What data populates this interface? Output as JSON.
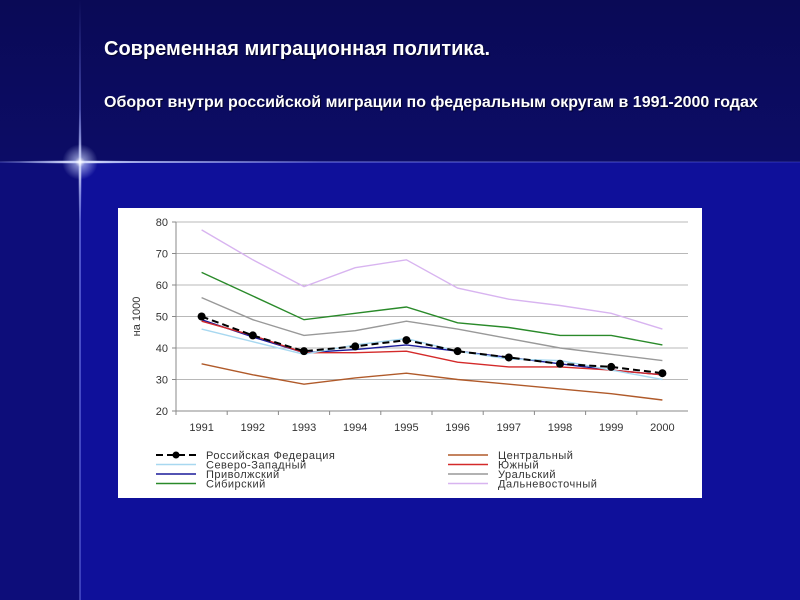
{
  "slide": {
    "title": "Современная миграционная политика.",
    "subtitle": "Оборот внутри российской миграции по федеральным округам в 1991-2000 годах"
  },
  "colors": {
    "background": "#0d0d7a",
    "title_text": "#ffffff",
    "chart_background": "#ffffff"
  },
  "chart_data": {
    "type": "line",
    "title": "",
    "xlabel": "",
    "ylabel": "на 1000",
    "ylim": [
      20,
      80
    ],
    "yticks": [
      20,
      30,
      40,
      50,
      60,
      70,
      80
    ],
    "grid": true,
    "legend_position": "bottom",
    "categories": [
      "1991",
      "1992",
      "1993",
      "1994",
      "1995",
      "1996",
      "1997",
      "1998",
      "1999",
      "2000"
    ],
    "series": [
      {
        "name": "Российская Федерация",
        "color": "#000000",
        "dashed": true,
        "markers": true,
        "values": [
          50,
          44,
          39,
          40.5,
          42.5,
          39,
          37,
          35,
          34,
          32
        ]
      },
      {
        "name": "Центральный",
        "color": "#b05a2a",
        "values": [
          35,
          31.5,
          28.5,
          30.5,
          32,
          30,
          28.5,
          27,
          25.5,
          23.5
        ]
      },
      {
        "name": "Северо-Западный",
        "color": "#a8d8f0",
        "values": [
          46,
          42,
          38,
          41,
          43,
          39,
          36.5,
          36,
          33,
          30
        ]
      },
      {
        "name": "Южный",
        "color": "#d42a2a",
        "values": [
          48.5,
          44,
          38.5,
          38.5,
          39,
          35.5,
          34,
          34,
          33,
          31.5
        ]
      },
      {
        "name": "Приволжский",
        "color": "#1a1a9a",
        "values": [
          49,
          43.5,
          38.5,
          39.5,
          41,
          39,
          37,
          35,
          33,
          31.5
        ]
      },
      {
        "name": "Уральский",
        "color": "#999999",
        "values": [
          56,
          49,
          44,
          45.5,
          48.5,
          46,
          43,
          40,
          38,
          36
        ]
      },
      {
        "name": "Сибирский",
        "color": "#2a8a2a",
        "values": [
          64,
          56.5,
          49,
          51,
          53,
          48,
          46.5,
          44,
          44,
          41
        ]
      },
      {
        "name": "Дальневосточный",
        "color": "#d8b4f0",
        "values": [
          77.5,
          68,
          59.5,
          65.5,
          68,
          59,
          55.5,
          53.5,
          51,
          46
        ]
      }
    ]
  }
}
